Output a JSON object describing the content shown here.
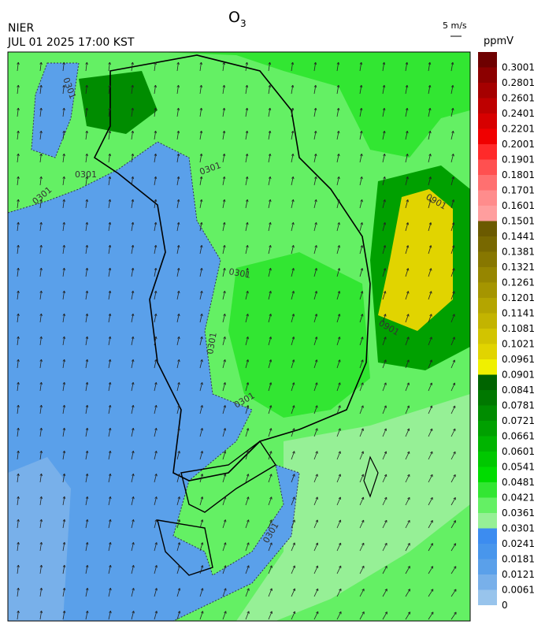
{
  "header": {
    "title": "O",
    "title_subscript": "3",
    "organization": "NIER",
    "datetime": "JUL 01 2025 17:00 KST"
  },
  "wind_legend": {
    "label": "5 m/s"
  },
  "colorbar": {
    "unit": "ppmV",
    "labels": [
      "0.3001",
      "0.2801",
      "0.2601",
      "0.2401",
      "0.2201",
      "0.2001",
      "0.1901",
      "0.1801",
      "0.1701",
      "0.1601",
      "0.1501",
      "0.1441",
      "0.1381",
      "0.1321",
      "0.1261",
      "0.1201",
      "0.1141",
      "0.1081",
      "0.1021",
      "0.0961",
      "0.0901",
      "0.0841",
      "0.0781",
      "0.0721",
      "0.0661",
      "0.0601",
      "0.0541",
      "0.0481",
      "0.0421",
      "0.0361",
      "0.0301",
      "0.0241",
      "0.0181",
      "0.0121",
      "0.0061",
      "0"
    ],
    "colors": [
      "#6e0000",
      "#8c0000",
      "#a50000",
      "#be0000",
      "#d70000",
      "#f00000",
      "#ff2a2a",
      "#ff5050",
      "#ff7070",
      "#ff8c8c",
      "#ff9e9e",
      "#6b5a00",
      "#786800",
      "#877700",
      "#968600",
      "#a59500",
      "#b4a500",
      "#c3b400",
      "#d2c400",
      "#e1d400",
      "#f0f000",
      "#006400",
      "#007800",
      "#008c00",
      "#00a000",
      "#00b400",
      "#00c800",
      "#00dc00",
      "#32e632",
      "#64f064",
      "#96f096",
      "#3c8cf0",
      "#4896ec",
      "#5aa0ea",
      "#78b0ea",
      "#98c4ec"
    ]
  },
  "contour_labels": [
    "0301",
    "0301",
    "0301",
    "0301",
    "0301",
    "0301",
    "0301",
    "0901",
    "0901",
    "0301"
  ]
}
